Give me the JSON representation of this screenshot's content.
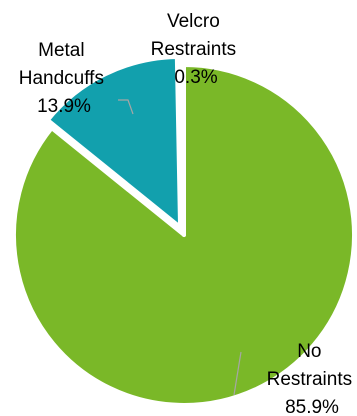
{
  "chart_data": {
    "type": "pie",
    "series": [
      {
        "values": [
          85.9,
          13.9,
          0.3
        ],
        "categories": [
          "No Restraints",
          "Metal Handcuffs",
          "Velcro Restraints"
        ],
        "colors": [
          "#7ab828",
          "#12a0ad",
          "#7ab828"
        ],
        "labels": [
          {
            "lines": [
              "No",
              "Restraints",
              "85.9%"
            ]
          },
          {
            "lines": [
              "Metal",
              "Handcuffs",
              "13.9%"
            ]
          },
          {
            "lines": [
              "Velcro",
              "Restraints",
              "0.3%"
            ]
          }
        ]
      }
    ],
    "start_angle_deg": 0,
    "direction": "clockwise",
    "exploded_slices": [
      "Metal Handcuffs"
    ],
    "legend": "none",
    "leader_line_color": "#a6a6a6"
  }
}
